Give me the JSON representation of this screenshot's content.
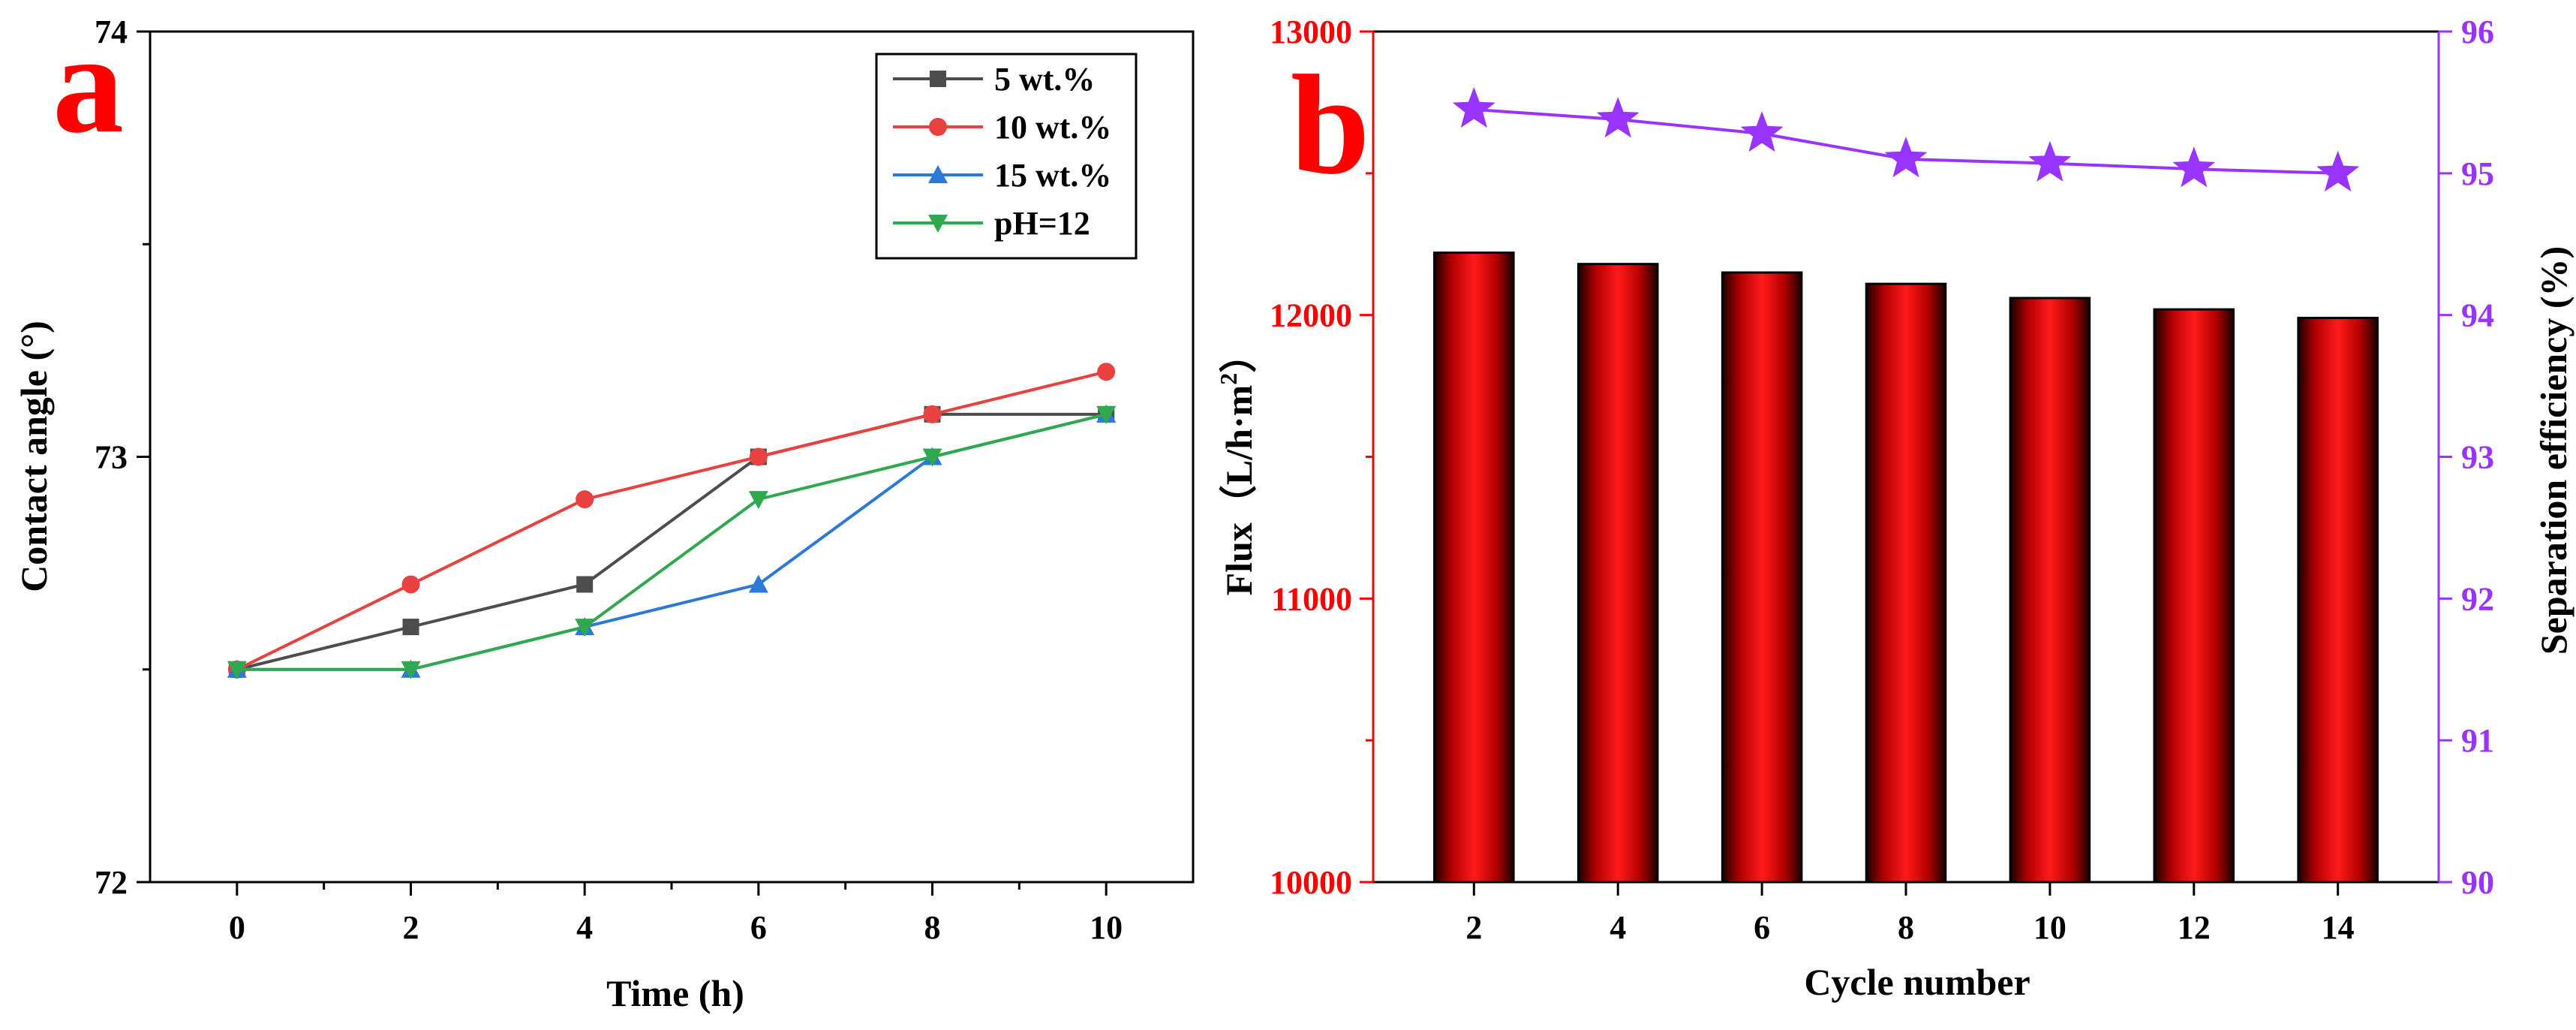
{
  "chart_data": [
    {
      "panel": "a",
      "type": "line",
      "xlabel": "Time (h)",
      "ylabel": "Contact angle (°)",
      "xlim": [
        -1,
        11
      ],
      "ylim": [
        72,
        74
      ],
      "x_ticks": [
        "0",
        "2",
        "4",
        "6",
        "8",
        "10"
      ],
      "y_ticks": [
        "72",
        "73",
        "74"
      ],
      "x": [
        0,
        2,
        4,
        6,
        8,
        10
      ],
      "legend_position": "top-right",
      "series": [
        {
          "name": "5 wt.%",
          "color": "#4d4d4d",
          "marker": "square",
          "values": [
            72.5,
            72.6,
            72.7,
            73.0,
            73.1,
            73.1
          ]
        },
        {
          "name": "10 wt.%",
          "color": "#e8413f",
          "marker": "circle",
          "values": [
            72.5,
            72.7,
            72.9,
            73.0,
            73.1,
            73.2
          ]
        },
        {
          "name": "15 wt.%",
          "color": "#2d79d9",
          "marker": "triangle-up",
          "values": [
            72.5,
            72.5,
            72.6,
            72.7,
            73.0,
            73.1
          ]
        },
        {
          "name": "pH=12",
          "color": "#2fa84e",
          "marker": "triangle-down",
          "values": [
            72.5,
            72.5,
            72.6,
            72.9,
            73.0,
            73.1
          ]
        }
      ]
    },
    {
      "panel": "b",
      "type": "bar+line",
      "xlabel": "Cycle number",
      "categories": [
        "2",
        "4",
        "6",
        "8",
        "10",
        "12",
        "14"
      ],
      "left_axis": {
        "label_main": "Flux",
        "label_unit": "（L/h·m",
        "label_sup": "2",
        "label_end": "）",
        "color": "#ff0000",
        "ylim": [
          10000,
          13000
        ],
        "ticks": [
          "10000",
          "11000",
          "12000",
          "13000"
        ]
      },
      "right_axis": {
        "label": "Separation efficiency (%)",
        "color": "#9933ff",
        "ylim": [
          90,
          96
        ],
        "ticks": [
          "90",
          "91",
          "92",
          "93",
          "94",
          "95",
          "96"
        ]
      },
      "bars": {
        "name": "Flux",
        "color": "#ff0000",
        "values": [
          12220,
          12180,
          12150,
          12110,
          12060,
          12020,
          11990
        ]
      },
      "line": {
        "name": "Separation efficiency",
        "color": "#9933ff",
        "marker": "star",
        "values": [
          95.45,
          95.38,
          95.28,
          95.1,
          95.07,
          95.03,
          95.0
        ]
      }
    }
  ]
}
